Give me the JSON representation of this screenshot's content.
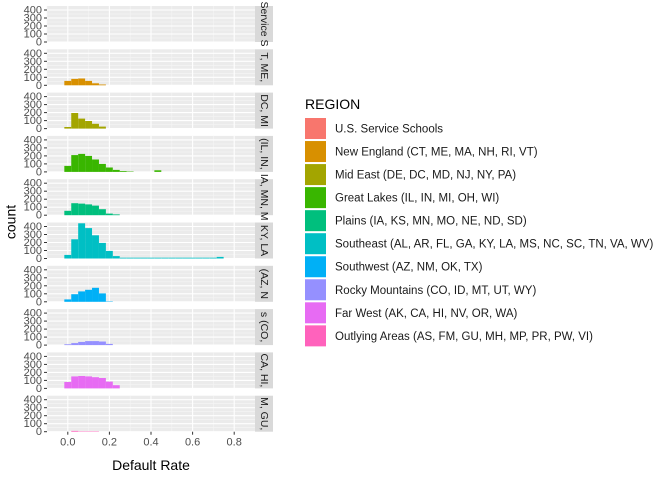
{
  "chart_data": {
    "type": "histogram",
    "xlabel": "Default Rate",
    "ylabel": "count",
    "xlim": [
      -0.1,
      0.9
    ],
    "ylim": [
      0,
      450
    ],
    "x_ticks": [
      0.0,
      0.2,
      0.4,
      0.6,
      0.8
    ],
    "x_tick_labels": [
      "0.0",
      "0.2",
      "0.4",
      "0.6",
      "0.8"
    ],
    "y_ticks": [
      0,
      100,
      200,
      300,
      400
    ],
    "y_tick_labels": [
      "0",
      "100",
      "200",
      "300",
      "400"
    ],
    "bin_width": 0.0333,
    "bin_start": -0.05,
    "legend": {
      "title": "REGION",
      "position": "right"
    },
    "series": [
      {
        "name": "U.S. Service Schools",
        "strip": "Service S",
        "color": "#F8766D",
        "counts": []
      },
      {
        "name": "New England (CT, ME, MA, NH, RI, VT)",
        "strip": "T, ME,",
        "color": "#D89000",
        "counts": [
          0,
          55,
          80,
          85,
          55,
          25,
          10
        ]
      },
      {
        "name": "Mid East (DE, DC, MD, NJ, NY, PA)",
        "strip": "DC, MI",
        "color": "#A3A500",
        "counts": [
          0,
          20,
          195,
          125,
          95,
          60,
          25
        ]
      },
      {
        "name": "Great Lakes (IL, IN, MI, OH, WI)",
        "strip": "(IL, IN,",
        "color": "#39B600",
        "counts": [
          0,
          75,
          210,
          225,
          200,
          155,
          100,
          55,
          25,
          10,
          5,
          0,
          0,
          0,
          20,
          0,
          0,
          0,
          0
        ]
      },
      {
        "name": "Plains (IA, KS, MN, MO, NE, ND, SD)",
        "strip": "IA, MN, M",
        "color": "#00BF7D",
        "counts": [
          0,
          55,
          150,
          145,
          135,
          120,
          75,
          20,
          10
        ]
      },
      {
        "name": "Southeast (AL, AR, FL, GA, KY, LA, MS, NC, SC, TN, VA, WV)",
        "strip": "KY, LA",
        "color": "#00BFC4",
        "counts": [
          0,
          45,
          240,
          440,
          380,
          290,
          195,
          95,
          30,
          10,
          10,
          10,
          10,
          10,
          10,
          10,
          10,
          10,
          10,
          10,
          10,
          10,
          10,
          20,
          0,
          0
        ]
      },
      {
        "name": "Southwest (AZ, NM, OK, TX)",
        "strip": "(AZ, N",
        "color": "#00B0F6",
        "counts": [
          0,
          30,
          95,
          130,
          150,
          175,
          105,
          5
        ]
      },
      {
        "name": "Rocky Mountains (CO, ID, MT, UT, WY)",
        "strip": "s (CO,",
        "color": "#9590FF",
        "counts": [
          0,
          10,
          25,
          40,
          50,
          50,
          45,
          15
        ]
      },
      {
        "name": "Far West (AK, CA, HI, NV, OR, WA)",
        "strip": "CA, HI,",
        "color": "#E76BF3",
        "counts": [
          0,
          80,
          150,
          155,
          150,
          140,
          130,
          85,
          40
        ]
      },
      {
        "name": "Outlying Areas (AS, FM, GU, MH, MP, PR, PW, VI)",
        "strip": "M, GU,",
        "color": "#FF62BC",
        "counts": [
          0,
          0,
          10,
          5,
          5,
          5,
          0
        ]
      }
    ]
  }
}
